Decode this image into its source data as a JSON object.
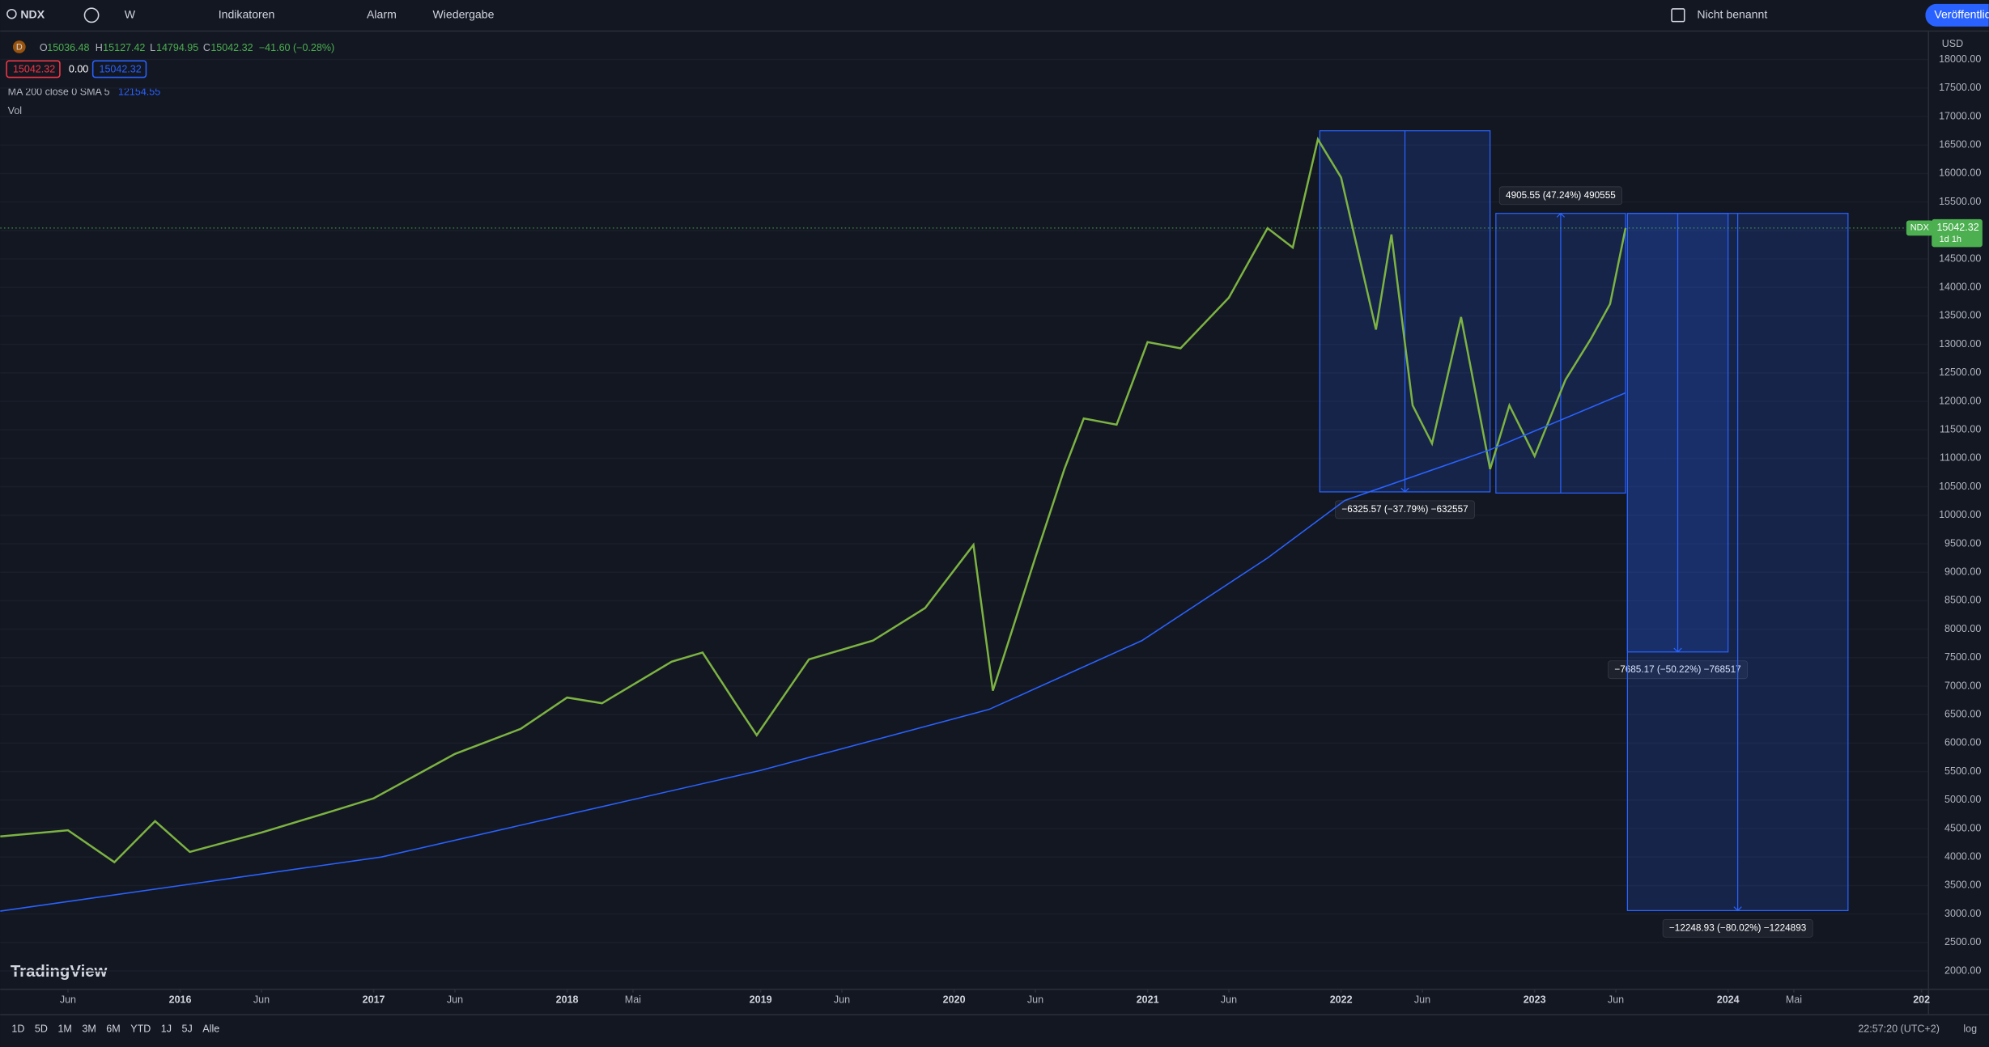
{
  "toolbar": {
    "symbol": "NDX",
    "interval": "W",
    "indicators": "Indikatoren",
    "alert": "Alarm",
    "replay": "Wiedergabe",
    "layout": "Nicht benannt",
    "publish": "Veröffentlichen"
  },
  "legend": {
    "badge": "D",
    "o_label": "O",
    "open": "15036.48",
    "h_label": "H",
    "high": "15127.42",
    "l_label": "L",
    "low": "14794.95",
    "c_label": "C",
    "close": "15042.32",
    "change": "−41.60 (−0.28%)",
    "bid": "15042.32",
    "spread": "0.00",
    "ask": "15042.32",
    "ma": "MA 200 close 0 SMA 5",
    "ma_value": "12154.55",
    "vol": "Vol"
  },
  "price_axis": {
    "currency": "USD",
    "tag_symbol": "NDX",
    "tag_price": "15042.32",
    "tag_countdown": "1d 1h"
  },
  "logo": "TradingView",
  "bottom_bar": {
    "ranges": [
      "1D",
      "5D",
      "1M",
      "3M",
      "6M",
      "YTD",
      "1J",
      "5J",
      "Alle"
    ],
    "clock": "22:57:20 (UTC+2)",
    "scale": "log"
  },
  "chart_data": {
    "type": "line",
    "x": [
      2015.07,
      2015.42,
      2015.66,
      2015.87,
      2016.05,
      2016.42,
      2016.78,
      2017.0,
      2017.42,
      2017.76,
      2018.0,
      2018.18,
      2018.54,
      2018.7,
      2018.87,
      2018.98,
      2019.25,
      2019.58,
      2019.85,
      2020.1,
      2020.2,
      2020.42,
      2020.57,
      2020.67,
      2020.84,
      2021.0,
      2021.17,
      2021.42,
      2021.62,
      2021.75,
      2021.88,
      2022.0,
      2022.18,
      2022.26,
      2022.37,
      2022.47,
      2022.62,
      2022.77,
      2022.87,
      2023.0,
      2023.16,
      2023.29,
      2023.39,
      2023.47
    ],
    "series": [
      {
        "name": "NDX",
        "color": "#7cb342",
        "values": [
          4360,
          4470,
          3910,
          4630,
          4090,
          4430,
          4800,
          5030,
          5810,
          6250,
          6800,
          6700,
          7430,
          7590,
          6700,
          6140,
          7470,
          7800,
          8370,
          9480,
          6920,
          9260,
          10810,
          11700,
          11590,
          13040,
          12930,
          13820,
          15040,
          14700,
          16600,
          15930,
          13260,
          14930,
          11930,
          11260,
          13480,
          10810,
          11930,
          11040,
          12380,
          13090,
          13710,
          15042
        ]
      },
      {
        "name": "MA 200",
        "color": "#2962ff",
        "x": [
          2015.07,
          2017.04,
          2019.0,
          2020.18,
          2020.97,
          2021.62,
          2022.02,
          2022.77,
          2023.47
        ],
        "values": [
          3050,
          4000,
          5520,
          6590,
          7800,
          9250,
          10260,
          11150,
          12150
        ]
      }
    ],
    "drawings": [
      {
        "x": [
          2021.89,
          2022.77
        ],
        "y": [
          10410,
          16750
        ],
        "arrow": "down",
        "label": "−6325.57 (−37.79%) −632557"
      },
      {
        "x": [
          2022.8,
          2023.47
        ],
        "y": [
          10390,
          15300
        ],
        "arrow": "up",
        "label": "4905.55 (47.24%) 490555"
      },
      {
        "x": [
          2023.48,
          2024.0
        ],
        "y": [
          7600,
          15300
        ],
        "arrow": "down",
        "label": "−7685.17 (−50.22%) −768517"
      },
      {
        "x": [
          2023.48,
          2024.62
        ],
        "y": [
          3060,
          15300
        ],
        "arrow": "down",
        "label": "−12248.93 (−80.02%) −1224893"
      }
    ],
    "xlim": [
      2015.07,
      2025.0
    ],
    "ylim": [
      2000,
      18000
    ],
    "xticks": [
      {
        "value": 2015.42,
        "label": "Jun"
      },
      2016,
      {
        "value": 2016.42,
        "label": "Jun"
      },
      2017,
      {
        "value": 2017.42,
        "label": "Jun"
      },
      2018,
      {
        "value": 2018.34,
        "label": "Mai"
      },
      2019,
      {
        "value": 2019.42,
        "label": "Jun"
      },
      2020,
      {
        "value": 2020.42,
        "label": "Jun"
      },
      2021,
      {
        "value": 2021.42,
        "label": "Jun"
      },
      2022,
      {
        "value": 2022.42,
        "label": "Jun"
      },
      2023,
      {
        "value": 2023.42,
        "label": "Jun"
      },
      2024,
      {
        "value": 2024.34,
        "label": "Mai"
      },
      {
        "value": 2025,
        "label": "202"
      }
    ],
    "yticks": [
      {
        "value": 2000,
        "label": "2000.00"
      },
      {
        "value": 2500,
        "label": "2500.00"
      },
      {
        "value": 3000,
        "label": "3000.00"
      },
      {
        "value": 3500,
        "label": "3500.00"
      },
      {
        "value": 4000,
        "label": "4000.00"
      },
      {
        "value": 4500,
        "label": "4500.00"
      },
      {
        "value": 5000,
        "label": "5000.00"
      },
      {
        "value": 5500,
        "label": "5500.00"
      },
      {
        "value": 6000,
        "label": "6000.00"
      },
      {
        "value": 6500,
        "label": "6500.00"
      },
      {
        "value": 7000,
        "label": "7000.00"
      },
      {
        "value": 7500,
        "label": "7500.00"
      },
      {
        "value": 8000,
        "label": "8000.00"
      },
      {
        "value": 8500,
        "label": "8500.00"
      },
      {
        "value": 9000,
        "label": "9000.00"
      },
      {
        "value": 9500,
        "label": "9500.00"
      },
      {
        "value": 10000,
        "label": "10000.00"
      },
      {
        "value": 10500,
        "label": "10500.00"
      },
      {
        "value": 11000,
        "label": "11000.00"
      },
      {
        "value": 11500,
        "label": "11500.00"
      },
      {
        "value": 12000,
        "label": "12000.00"
      },
      {
        "value": 12500,
        "label": "12500.00"
      },
      {
        "value": 13000,
        "label": "13000.00"
      },
      {
        "value": 13500,
        "label": "13500.00"
      },
      {
        "value": 14000,
        "label": "14000.00"
      },
      {
        "value": 14500,
        "label": "14500.00"
      },
      {
        "value": 15000,
        "label": "15000.00"
      },
      {
        "value": 15500,
        "label": "15500.00"
      },
      {
        "value": 16000,
        "label": "16000.00"
      },
      {
        "value": 16500,
        "label": "16500.00"
      },
      {
        "value": 17000,
        "label": "17000.00"
      },
      {
        "value": 17500,
        "label": "17500.00"
      },
      {
        "value": 18000,
        "label": "18000.00"
      }
    ],
    "current_price": 15042.32
  }
}
